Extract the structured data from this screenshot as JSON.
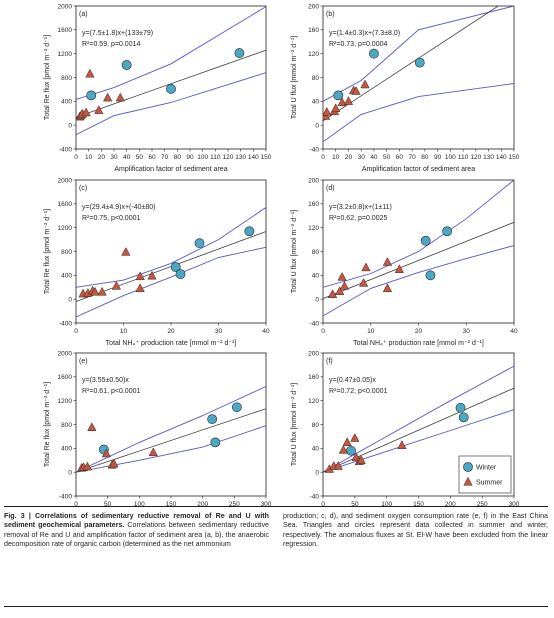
{
  "chart_data": [
    {
      "panel": "(a)",
      "type": "scatter",
      "equation": "y=(7.5±1.8)x+(133±79)",
      "stats": "R²=0.59, p=0.0014",
      "xlabel": "Amplification factor of sediment area",
      "ylabel": "Total Re flux [pmol m⁻² d⁻¹]",
      "xlim": [
        0,
        150
      ],
      "ylim": [
        -400,
        2000
      ],
      "xticks": [
        0,
        10,
        20,
        30,
        40,
        50,
        60,
        70,
        80,
        90,
        100,
        110,
        120,
        130,
        140,
        150
      ],
      "yticks": [
        -400,
        0,
        400,
        800,
        1200,
        1600,
        2000
      ],
      "fit": [
        133,
        7.5
      ],
      "band": [
        [
          0,
          430,
          -160
        ],
        [
          30,
          630,
          160
        ],
        [
          75,
          1030,
          380
        ],
        [
          150,
          1990,
          880
        ]
      ],
      "series": [
        {
          "name": "Winter",
          "marker": "circle",
          "points": [
            [
              12,
              500
            ],
            [
              40,
              1010
            ],
            [
              75,
              610
            ],
            [
              129,
              1210
            ]
          ]
        },
        {
          "name": "Summer",
          "marker": "triangle",
          "points": [
            [
              3,
              140
            ],
            [
              4,
              160
            ],
            [
              5,
              190
            ],
            [
              8,
              210
            ],
            [
              11,
              860
            ],
            [
              18,
              250
            ],
            [
              25,
              460
            ],
            [
              35,
              460
            ]
          ]
        }
      ]
    },
    {
      "panel": "(b)",
      "type": "scatter",
      "equation": "y=(1.4±0.3)x+(7.3±8.0)",
      "stats": "R²=0.73, p=0.0004",
      "xlabel": "Amplification factor of sediment area",
      "ylabel": "Total U flux [mmol m⁻² d⁻¹]",
      "xlim": [
        0,
        150
      ],
      "ylim": [
        -40,
        200
      ],
      "xticks": [
        0,
        10,
        20,
        30,
        40,
        50,
        60,
        70,
        80,
        90,
        100,
        110,
        120,
        130,
        140,
        150
      ],
      "yticks": [
        -40,
        0,
        40,
        80,
        120,
        160,
        200
      ],
      "fit": [
        7.3,
        1.4
      ],
      "band": [
        [
          0,
          40,
          -28
        ],
        [
          30,
          75,
          18
        ],
        [
          75,
          160,
          48
        ],
        [
          150,
          200,
          70
        ]
      ],
      "series": [
        {
          "name": "Winter",
          "marker": "circle",
          "points": [
            [
              12,
              50
            ],
            [
              40,
              120
            ],
            [
              76,
              105
            ]
          ]
        },
        {
          "name": "Summer",
          "marker": "triangle",
          "points": [
            [
              2,
              15
            ],
            [
              3,
              22
            ],
            [
              9,
              23
            ],
            [
              10,
              28
            ],
            [
              15,
              38
            ],
            [
              20,
              40
            ],
            [
              24,
              58
            ],
            [
              26,
              57
            ],
            [
              33,
              68
            ]
          ]
        }
      ]
    },
    {
      "panel": "(c)",
      "type": "scatter",
      "equation": "y=(29.4±4.9)x+(-40±80)",
      "stats": "R²=0.75, p<0.0001",
      "xlabel": "Total NH₄⁺ production rate [mmol m⁻² d⁻¹]",
      "ylabel": "Total Re flux [pmol m⁻² d⁻¹]",
      "xlim": [
        0,
        40
      ],
      "ylim": [
        -400,
        2000
      ],
      "xticks": [
        0,
        10,
        20,
        30,
        40
      ],
      "yticks": [
        -400,
        0,
        400,
        800,
        1200,
        1600,
        2000
      ],
      "fit": [
        -40,
        29.4
      ],
      "band": [
        [
          0,
          200,
          -300
        ],
        [
          10,
          320,
          60
        ],
        [
          20,
          600,
          370
        ],
        [
          30,
          1000,
          700
        ],
        [
          40,
          1540,
          870
        ]
      ],
      "series": [
        {
          "name": "Winter",
          "marker": "circle",
          "points": [
            [
              21,
              540
            ],
            [
              22,
              420
            ],
            [
              26,
              940
            ],
            [
              36.5,
              1140
            ]
          ]
        },
        {
          "name": "Summer",
          "marker": "triangle",
          "points": [
            [
              1.5,
              90
            ],
            [
              2.5,
              100
            ],
            [
              3.5,
              140
            ],
            [
              4,
              120
            ],
            [
              5.5,
              120
            ],
            [
              8.5,
              220
            ],
            [
              10.5,
              790
            ],
            [
              13.5,
              380
            ],
            [
              13.5,
              180
            ],
            [
              16,
              390
            ]
          ]
        }
      ]
    },
    {
      "panel": "(d)",
      "type": "scatter",
      "equation": "y=(3.2±0.8)x+(1±11)",
      "stats": "R²=0.62, p=0.0025",
      "xlabel": "Total NH₄⁺ production rate [mmol m⁻² d⁻¹]",
      "ylabel": "Total U flux [mmol m⁻² d⁻¹]",
      "xlim": [
        0,
        40
      ],
      "ylim": [
        -40,
        200
      ],
      "xticks": [
        0,
        10,
        20,
        30,
        40
      ],
      "yticks": [
        -40,
        0,
        40,
        80,
        120,
        160,
        200
      ],
      "fit": [
        1,
        3.2
      ],
      "band": [
        [
          0,
          20,
          -28
        ],
        [
          10,
          43,
          18
        ],
        [
          20,
          80,
          45
        ],
        [
          30,
          135,
          68
        ],
        [
          40,
          200,
          90
        ]
      ],
      "series": [
        {
          "name": "Winter",
          "marker": "circle",
          "points": [
            [
              21.5,
              98
            ],
            [
              22.5,
              40
            ],
            [
              26,
              114
            ]
          ]
        },
        {
          "name": "Summer",
          "marker": "triangle",
          "points": [
            [
              2,
              8
            ],
            [
              3.5,
              13
            ],
            [
              4,
              37
            ],
            [
              4.5,
              22
            ],
            [
              8.5,
              27
            ],
            [
              9,
              53
            ],
            [
              13.5,
              62
            ],
            [
              13.5,
              18
            ],
            [
              16,
              50
            ]
          ]
        }
      ]
    },
    {
      "panel": "(e)",
      "type": "scatter",
      "equation": "y=(3.55±0.50)x",
      "stats": "R²=0.61, p<0.0001",
      "xlabel": "Sediment O₂ consumption rate [mmol m⁻² d⁻¹]",
      "ylabel": "Total Re flux [pmol m⁻² d⁻¹]",
      "xlim": [
        0,
        300
      ],
      "ylim": [
        -400,
        2000
      ],
      "xticks": [
        0,
        50,
        100,
        150,
        200,
        250,
        300
      ],
      "yticks": [
        -400,
        0,
        400,
        800,
        1200,
        1600,
        2000
      ],
      "fit": [
        0,
        3.55
      ],
      "band": [
        [
          0,
          0,
          0
        ],
        [
          100,
          500,
          200
        ],
        [
          200,
          950,
          420
        ],
        [
          300,
          1440,
          780
        ]
      ],
      "series": [
        {
          "name": "Winter",
          "marker": "circle",
          "points": [
            [
              44,
              380
            ],
            [
              215,
              890
            ],
            [
              220,
              500
            ],
            [
              254,
              1090
            ]
          ]
        },
        {
          "name": "Summer",
          "marker": "triangle",
          "points": [
            [
              9,
              70
            ],
            [
              12,
              80
            ],
            [
              18,
              90
            ],
            [
              25,
              750
            ],
            [
              48,
              310
            ],
            [
              57,
              120
            ],
            [
              60,
              140
            ],
            [
              122,
              330
            ]
          ]
        }
      ]
    },
    {
      "panel": "(f)",
      "type": "scatter",
      "equation": "y=(0.47±0.05)x",
      "stats": "R²=0.72, p<0.0001",
      "xlabel": "Sediment O₂ consumption rate [mmol m⁻² d⁻¹]",
      "ylabel": "Total U flux [mmol m⁻² d⁻¹]",
      "xlim": [
        0,
        300
      ],
      "ylim": [
        -40,
        200
      ],
      "xticks": [
        0,
        50,
        100,
        150,
        200,
        250,
        300
      ],
      "yticks": [
        -40,
        0,
        40,
        80,
        120,
        160,
        200
      ],
      "fit": [
        0,
        0.47
      ],
      "band": [
        [
          0,
          0,
          0
        ],
        [
          100,
          60,
          35
        ],
        [
          200,
          120,
          70
        ],
        [
          300,
          178,
          105
        ]
      ],
      "series": [
        {
          "name": "Winter",
          "marker": "circle",
          "points": [
            [
              44,
              36
            ],
            [
              216,
              108
            ],
            [
              221,
              92
            ]
          ]
        },
        {
          "name": "Summer",
          "marker": "triangle",
          "points": [
            [
              10,
              5
            ],
            [
              17,
              10
            ],
            [
              24,
              10
            ],
            [
              32,
              37
            ],
            [
              38,
              50
            ],
            [
              50,
              57
            ],
            [
              52,
              25
            ],
            [
              57,
              18
            ],
            [
              60,
              20
            ],
            [
              124,
              45
            ]
          ]
        }
      ]
    }
  ],
  "legend": {
    "items": [
      "Winter",
      "Summer"
    ],
    "placement": "bottom-right of panel (f)"
  },
  "colors": {
    "winter_fill": "#4aa8c4",
    "summer_fill": "#c8553d",
    "marker_edge": "#2b2b2b",
    "fit_line": "#3a3a3a",
    "band_line": "#5555cc"
  },
  "caption": {
    "figure_label": "Fig. 3 | ",
    "title": "Correlations of sedimentary reductive removal of Re and U with sediment geochemical parameters.",
    "left_text": " Correlations between sedimentary reductive removal of Re and U and amplification factor of sediment area (a, b), the anaerobic decomposition rate of organic carbon (determined as the net ammonium",
    "right_text": "production; c, d), and sediment oxygen consumption rate (e, f) in the East China Sea. Triangles and circles represent data collected in summer and winter, respectively. The anomalous fluxes at St. El-W have been excluded from the linear regression."
  }
}
